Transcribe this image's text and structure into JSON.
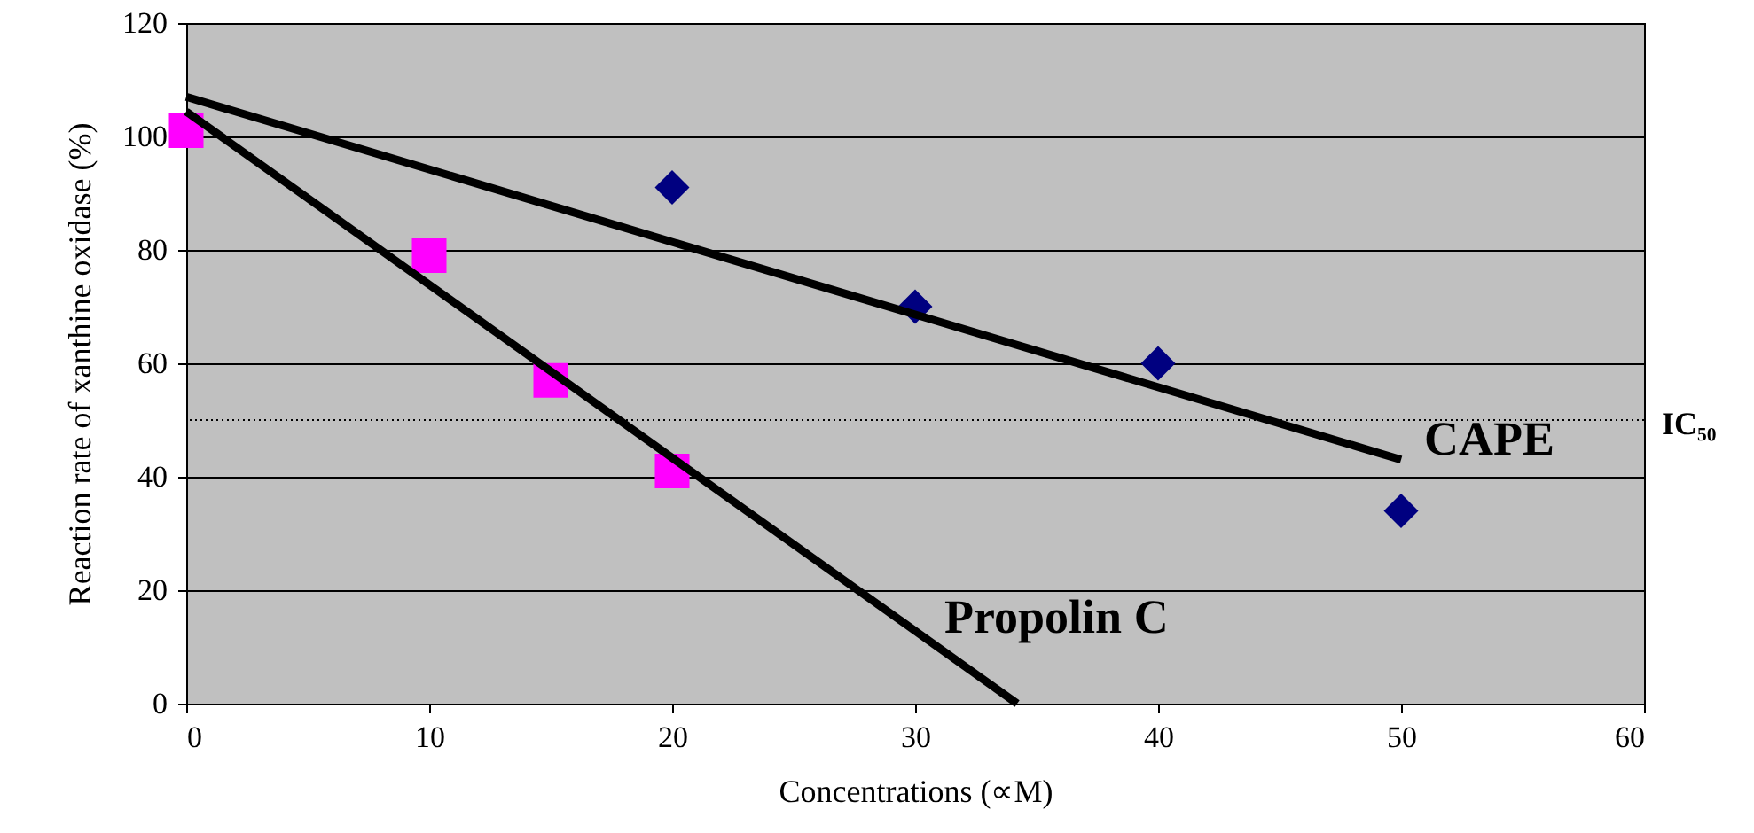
{
  "chart_data": {
    "type": "scatter",
    "xlabel": "Concentrations (∝M)",
    "ylabel": "Reaction rate of xanthine oxidase (%)",
    "xlim": [
      0,
      60
    ],
    "xticks": [
      0,
      10,
      20,
      30,
      40,
      50,
      60
    ],
    "ylim": [
      0,
      120
    ],
    "yticks": [
      0,
      20,
      40,
      60,
      80,
      100,
      120
    ],
    "grid": "y",
    "series": [
      {
        "type": "scatter",
        "marker": "diamond",
        "color": "#000080",
        "x": [
          20,
          30,
          40,
          50
        ],
        "values": [
          91,
          70,
          60,
          34
        ]
      },
      {
        "type": "scatter",
        "marker": "square",
        "color": "#ff00ff",
        "x": [
          0,
          10,
          15,
          20
        ],
        "values": [
          101,
          79,
          57,
          41
        ]
      },
      {
        "type": "line",
        "name": "CAPE",
        "color": "#000000",
        "x": [
          0,
          50
        ],
        "values": [
          107,
          43
        ]
      },
      {
        "type": "line",
        "name": "Propolin C",
        "color": "#000000",
        "x": [
          0,
          34.2
        ],
        "values": [
          104.4,
          0
        ]
      }
    ],
    "ref_lines": [
      {
        "axis": "y",
        "value": 50,
        "label": "IC₅₀",
        "color": "#000000",
        "line_style": "dotted"
      }
    ]
  }
}
